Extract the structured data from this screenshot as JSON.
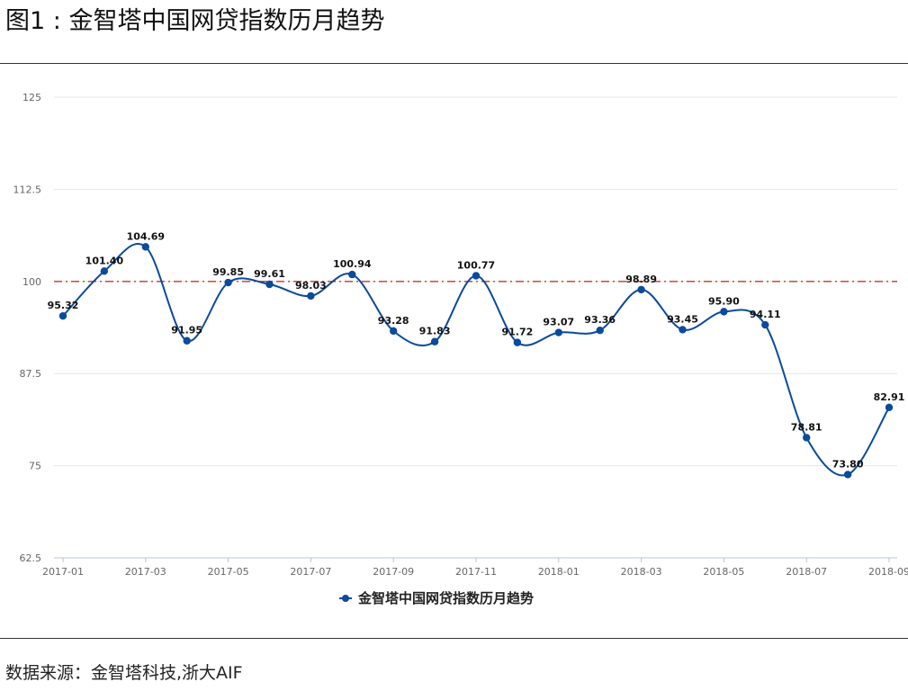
{
  "figure": {
    "title": "图1 : 金智塔中国网贷指数历月趋势",
    "source": "数据来源：金智塔科技,浙大AIF"
  },
  "chart_data": {
    "type": "line",
    "title": "",
    "xlabel": "",
    "ylabel": "",
    "ylim": [
      62.5,
      125
    ],
    "yticks": [
      "125",
      "112.5",
      "100",
      "87.5",
      "75",
      "62.5"
    ],
    "ytick_values": [
      125,
      112.5,
      100,
      87.5,
      75,
      62.5
    ],
    "x": [
      "2017-01",
      "2017-02",
      "2017-03",
      "2017-04",
      "2017-05",
      "2017-06",
      "2017-07",
      "2017-08",
      "2017-09",
      "2017-10",
      "2017-11",
      "2017-12",
      "2018-01",
      "2018-02",
      "2018-03",
      "2018-04",
      "2018-05",
      "2018-06",
      "2018-07",
      "2018-08",
      "2018-09"
    ],
    "xtick_labels": [
      "2017-01",
      "2017-03",
      "2017-05",
      "2017-07",
      "2017-09",
      "2017-11",
      "2018-01",
      "2018-03",
      "2018-05",
      "2018-07",
      "2018-09"
    ],
    "series": [
      {
        "name": "金智塔中国网贷指数历月趋势",
        "color": "#0b4a9c",
        "values": [
          95.32,
          101.4,
          104.69,
          91.95,
          99.85,
          99.61,
          98.03,
          100.94,
          93.28,
          91.83,
          100.77,
          91.72,
          93.07,
          93.36,
          98.89,
          93.45,
          95.9,
          94.11,
          78.81,
          73.8,
          82.91
        ],
        "labels": [
          "95.32",
          "101.40",
          "104.69",
          "91.95",
          "99.85",
          "99.61",
          "98.03",
          "100.94",
          "93.28",
          "91.83",
          "100.77",
          "91.72",
          "93.07",
          "93.36",
          "98.89",
          "93.45",
          "95.90",
          "94.11",
          "78.81",
          "73.80",
          "82.91"
        ]
      }
    ],
    "reference_line": {
      "value": 100,
      "color": "#c0392b",
      "style": "dash-dot"
    },
    "grid": true,
    "legend": "bottom-center"
  }
}
